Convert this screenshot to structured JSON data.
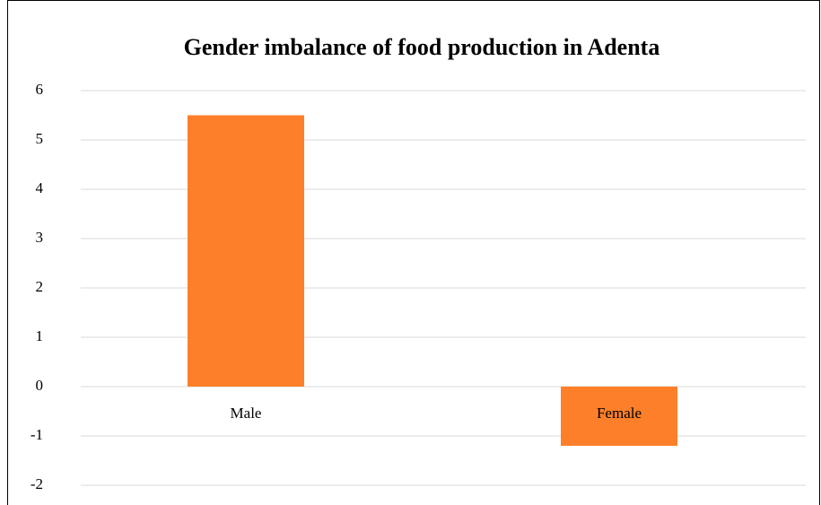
{
  "chart_data": {
    "type": "bar",
    "title": "Gender imbalance of food production in Adenta",
    "categories": [
      "Male",
      "Female"
    ],
    "values": [
      5.5,
      -1.2
    ],
    "color": "#fe7f2a",
    "ylim": [
      -2,
      6
    ],
    "yticks": [
      -2,
      -1,
      0,
      1,
      2,
      3,
      4,
      5,
      6
    ],
    "grid": true
  }
}
